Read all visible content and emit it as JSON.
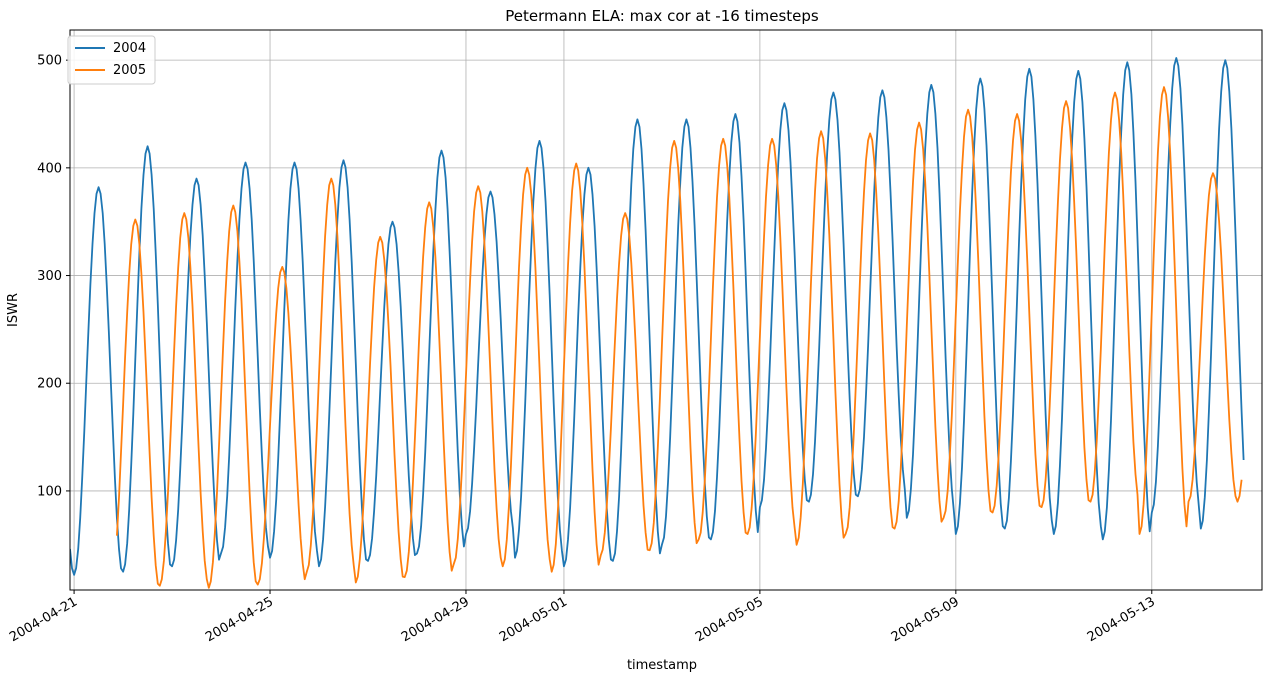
{
  "chart_data": {
    "type": "line",
    "title": "Petermann ELA: max cor at -16 timesteps",
    "xlabel": "timestamp",
    "ylabel": "ISWR",
    "x_range": [
      "2004-04-20",
      "2004-05-15"
    ],
    "x_range_hours": [
      -2,
      582
    ],
    "ylim": [
      8,
      528
    ],
    "grid": true,
    "legend_position": "top-left",
    "x_tick_labels": [
      "2004-04-21",
      "2004-04-25",
      "2004-04-29",
      "2004-05-01",
      "2004-05-05",
      "2004-05-09",
      "2004-05-13"
    ],
    "x_tick_hours": [
      0,
      96,
      192,
      240,
      336,
      432,
      528
    ],
    "y_ticks": [
      100,
      200,
      300,
      400,
      500
    ],
    "series": [
      {
        "name": "2004",
        "color": "#1f77b4",
        "start_hour": -2,
        "step_hours": 1,
        "peak_hour_offset": 12,
        "daily_max": [
          382,
          420,
          390,
          405,
          405,
          407,
          350,
          416,
          378,
          425,
          400,
          445,
          445,
          450,
          460,
          470,
          472,
          477,
          483,
          492,
          490,
          498,
          502,
          500
        ],
        "daily_min": [
          22,
          25,
          30,
          42,
          38,
          30,
          35,
          42,
          60,
          38,
          30,
          35,
          50,
          55,
          85,
          90,
          95,
          75,
          60,
          65,
          60,
          55,
          80,
          65
        ]
      },
      {
        "name": "2005",
        "color": "#ff7f0e",
        "start_hour": 21,
        "step_hours": 1,
        "peak_hour_offset": 30,
        "daily_max": [
          352,
          358,
          365,
          308,
          390,
          336,
          368,
          383,
          400,
          404,
          358,
          425,
          427,
          427,
          434,
          432,
          442,
          454,
          450,
          462,
          470,
          475,
          395
        ],
        "daily_min": [
          8,
          12,
          10,
          13,
          25,
          15,
          20,
          32,
          30,
          25,
          40,
          45,
          55,
          60,
          50,
          60,
          65,
          75,
          80,
          85,
          90,
          60,
          90
        ]
      }
    ]
  }
}
